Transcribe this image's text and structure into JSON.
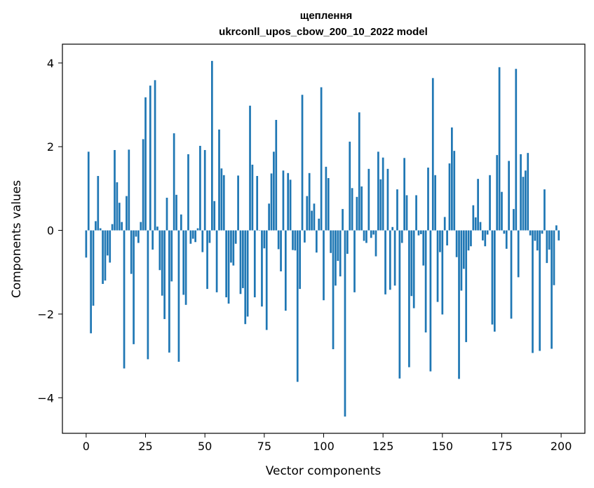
{
  "chart_data": {
    "type": "bar",
    "title": "щеплення",
    "subtitle": "ukrconll_upos_cbow_200_10_2022 model",
    "xlabel": "Vector components",
    "ylabel": "Components values",
    "xlim": [
      -10,
      210
    ],
    "ylim": [
      -4.85,
      4.45
    ],
    "xticks": [
      0,
      25,
      50,
      75,
      100,
      125,
      150,
      175,
      200
    ],
    "xtick_labels": [
      "0",
      "25",
      "50",
      "75",
      "100",
      "125",
      "150",
      "175",
      "200"
    ],
    "yticks": [
      -4,
      -2,
      0,
      2,
      4
    ],
    "ytick_labels": [
      "−4",
      "−2",
      "0",
      "2",
      "4"
    ],
    "grid": false,
    "bar_color": "#1f77b4",
    "series": [
      {
        "values": [
          -0.65,
          1.88,
          -2.46,
          -1.8,
          0.22,
          1.3,
          0.05,
          -1.28,
          -1.2,
          -0.6,
          -0.77,
          0.15,
          1.92,
          1.15,
          0.66,
          0.2,
          -3.3,
          0.82,
          1.93,
          -1.04,
          -2.72,
          -0.15,
          -0.3,
          0.2,
          2.18,
          3.18,
          -3.08,
          3.46,
          -0.46,
          3.59,
          0.09,
          -0.95,
          -1.56,
          -2.12,
          0.78,
          -2.92,
          -1.22,
          2.32,
          0.85,
          -3.14,
          0.38,
          -1.54,
          -1.78,
          1.82,
          -0.32,
          -0.2,
          -0.28,
          0.05,
          2.02,
          -0.52,
          1.92,
          -1.4,
          -0.3,
          4.05,
          0.7,
          -1.48,
          2.41,
          1.48,
          1.32,
          -1.6,
          -1.75,
          -0.77,
          -0.84,
          -0.32,
          1.31,
          -1.52,
          -1.38,
          -2.24,
          -2.06,
          2.98,
          1.57,
          -1.6,
          1.3,
          0.0,
          -1.82,
          -0.43,
          -2.38,
          0.64,
          1.36,
          1.88,
          2.64,
          -0.45,
          -0.98,
          1.43,
          -1.92,
          1.37,
          1.21,
          -0.47,
          -0.48,
          -3.62,
          -1.4,
          3.24,
          -0.29,
          0.82,
          1.37,
          0.47,
          0.64,
          -0.53,
          0.28,
          3.42,
          -1.67,
          1.52,
          1.25,
          -0.54,
          -2.84,
          -1.32,
          -0.73,
          -1.1,
          0.51,
          -4.45,
          -0.56,
          2.12,
          1.01,
          -1.48,
          0.8,
          2.82,
          1.05,
          -0.25,
          -0.3,
          1.47,
          -0.18,
          -0.1,
          -0.62,
          1.88,
          1.22,
          1.74,
          -1.53,
          1.47,
          -1.42,
          0.08,
          -1.32,
          0.98,
          -3.54,
          -0.3,
          1.73,
          0.84,
          -3.27,
          -1.57,
          -1.86,
          0.84,
          -0.12,
          -0.09,
          -0.84,
          -2.44,
          1.5,
          -3.37,
          3.64,
          1.32,
          -1.71,
          -0.52,
          -2.01,
          0.32,
          -0.36,
          1.6,
          2.46,
          1.9,
          -0.64,
          -3.55,
          -1.44,
          -0.92,
          -2.67,
          -0.48,
          -0.38,
          0.6,
          0.31,
          1.23,
          0.2,
          -0.24,
          -0.38,
          -0.1,
          1.32,
          -2.25,
          -2.42,
          1.8,
          3.9,
          0.92,
          -0.08,
          -0.44,
          1.66,
          -2.11,
          0.51,
          3.86,
          -1.12,
          1.82,
          1.28,
          1.43,
          1.85,
          -0.12,
          -2.93,
          -0.25,
          -0.48,
          -2.88,
          -0.08,
          0.98,
          -0.78,
          -0.46,
          -2.83,
          -1.31,
          0.12,
          -0.24
        ]
      }
    ]
  }
}
